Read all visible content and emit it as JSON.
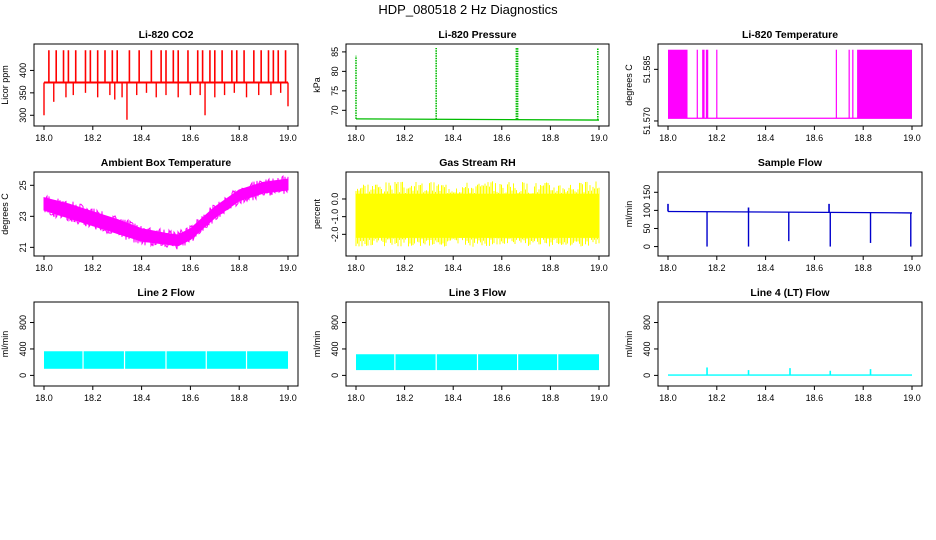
{
  "page": {
    "title": "HDP_080518  2 Hz Diagnostics"
  },
  "chart_data": [
    {
      "type": "line",
      "title": "Li-820 CO2",
      "xlabel": "",
      "ylabel": "Licor ppm",
      "xlim": [
        18.0,
        19.0
      ],
      "ylim": [
        285,
        450
      ],
      "xticks": [
        18.0,
        18.2,
        18.4,
        18.6,
        18.8,
        19.0
      ],
      "yticks": [
        300,
        350,
        400
      ],
      "color": "#ff0000",
      "baseline": 373,
      "style": "spikes",
      "spikes": {
        "up": [
          18.02,
          18.05,
          18.08,
          18.1,
          18.13,
          18.17,
          18.19,
          18.22,
          18.25,
          18.28,
          18.3,
          18.35,
          18.39,
          18.44,
          18.48,
          18.5,
          18.53,
          18.55,
          18.59,
          18.63,
          18.65,
          18.68,
          18.7,
          18.73,
          18.77,
          18.79,
          18.82,
          18.86,
          18.89,
          18.92,
          18.94,
          18.96,
          18.99
        ],
        "up_value": 445,
        "down": [
          18.0,
          18.04,
          18.09,
          18.12,
          18.17,
          18.22,
          18.27,
          18.29,
          18.32,
          18.34,
          18.38,
          18.42,
          18.46,
          18.5,
          18.55,
          18.6,
          18.64,
          18.66,
          18.7,
          18.74,
          18.78,
          18.83,
          18.88,
          18.93,
          18.97,
          19.0
        ],
        "down_values": [
          300,
          330,
          340,
          345,
          350,
          340,
          345,
          335,
          340,
          290,
          345,
          350,
          340,
          345,
          340,
          345,
          345,
          300,
          340,
          345,
          350,
          340,
          345,
          345,
          350,
          320
        ]
      }
    },
    {
      "type": "line",
      "title": "Li-820 Pressure",
      "xlabel": "",
      "ylabel": "kPa",
      "xlim": [
        18.0,
        19.0
      ],
      "ylim": [
        67,
        86
      ],
      "xticks": [
        18.0,
        18.2,
        18.4,
        18.6,
        18.8,
        19.0
      ],
      "yticks": [
        70,
        75,
        80,
        85
      ],
      "color": "#00bb00",
      "style": "spikes",
      "baseline_start": 67.8,
      "baseline_end": 67.5,
      "spikes": {
        "up": [
          18.0,
          18.33,
          18.66,
          18.665,
          18.995
        ],
        "up_values": [
          84,
          86,
          86,
          86,
          86
        ],
        "dotted": true
      }
    },
    {
      "type": "line",
      "title": "Li-820 Temperature",
      "xlabel": "",
      "ylabel": "degrees C",
      "xlim": [
        18.0,
        19.0
      ],
      "ylim": [
        51.5697,
        51.5912
      ],
      "xticks": [
        18.0,
        18.2,
        18.4,
        18.6,
        18.8,
        19.0
      ],
      "yticks": [
        51.57,
        51.585
      ],
      "color": "#ff00ff",
      "style": "binary",
      "low": 51.5708,
      "high": 51.5907,
      "bands": [
        [
          18.0,
          18.08
        ],
        [
          18.14,
          18.15
        ],
        [
          18.155,
          18.165
        ],
        [
          18.74,
          18.745
        ],
        [
          18.755,
          18.76
        ],
        [
          18.775,
          19.0
        ]
      ],
      "lines": [
        18.12,
        18.2,
        18.69
      ]
    },
    {
      "type": "line",
      "title": "Ambient Box Temperature",
      "xlabel": "",
      "ylabel": "degrees C",
      "xlim": [
        18.0,
        19.0
      ],
      "ylim": [
        20.7,
        25.6
      ],
      "xticks": [
        18.0,
        18.2,
        18.4,
        18.6,
        18.8,
        19.0
      ],
      "yticks": [
        21,
        23,
        25
      ],
      "color": "#ff00ff",
      "style": "band",
      "x": [
        18.0,
        18.1,
        18.2,
        18.3,
        18.4,
        18.5,
        18.55,
        18.6,
        18.7,
        18.8,
        18.9,
        19.0
      ],
      "upper": [
        24.2,
        23.8,
        23.3,
        22.8,
        22.2,
        21.9,
        21.8,
        22.2,
        23.6,
        24.7,
        25.2,
        25.4
      ],
      "lower": [
        23.4,
        22.9,
        22.4,
        21.9,
        21.4,
        21.2,
        21.1,
        21.5,
        22.9,
        24.0,
        24.5,
        24.7
      ]
    },
    {
      "type": "line",
      "title": "Gas Stream RH",
      "xlabel": "",
      "ylabel": "percent",
      "xlim": [
        18.0,
        19.0
      ],
      "ylim": [
        -3.0,
        1.3
      ],
      "xticks": [
        18.0,
        18.2,
        18.4,
        18.6,
        18.8,
        19.0
      ],
      "yticks": [
        -2.0,
        -1.0,
        0.0
      ],
      "color": "#ffff00",
      "style": "noise",
      "upper": 0.3,
      "lower": -2.2,
      "spike_max": 1.0,
      "spike_min": -2.7
    },
    {
      "type": "line",
      "title": "Sample Flow",
      "xlabel": "",
      "ylabel": "ml/min",
      "xlim": [
        18.0,
        19.0
      ],
      "ylim": [
        -15,
        195
      ],
      "xticks": [
        18.0,
        18.2,
        18.4,
        18.6,
        18.8,
        19.0
      ],
      "yticks": [
        0,
        50,
        100,
        150
      ],
      "color": "#0000cc",
      "style": "spikes",
      "baseline_start": 97,
      "baseline_end": 93,
      "spikes": {
        "down": [
          18.16,
          18.33,
          18.495,
          18.665,
          18.83,
          18.995
        ],
        "down_values": [
          0,
          0,
          15,
          0,
          10,
          0
        ],
        "up": [
          18.0,
          18.33,
          18.66
        ],
        "up_values": [
          118,
          108,
          118
        ]
      }
    },
    {
      "type": "line",
      "title": "Line 2 Flow",
      "xlabel": "",
      "ylabel": "ml/min",
      "xlim": [
        18.0,
        19.0
      ],
      "ylim": [
        -100,
        1050
      ],
      "xticks": [
        18.0,
        18.2,
        18.4,
        18.6,
        18.8,
        19.0
      ],
      "yticks": [
        0,
        400,
        800
      ],
      "color": "#00ffff",
      "style": "block",
      "upper": 365,
      "lower": 100,
      "gaps": [
        18.16,
        18.33,
        18.5,
        18.665,
        18.83
      ]
    },
    {
      "type": "line",
      "title": "Line 3 Flow",
      "xlabel": "",
      "ylabel": "ml/min",
      "xlim": [
        18.0,
        19.0
      ],
      "ylim": [
        -100,
        1050
      ],
      "xticks": [
        18.0,
        18.2,
        18.4,
        18.6,
        18.8,
        19.0
      ],
      "yticks": [
        0,
        400,
        800
      ],
      "color": "#00ffff",
      "style": "block",
      "upper": 320,
      "lower": 80,
      "gaps": [
        18.16,
        18.33,
        18.5,
        18.665,
        18.83
      ]
    },
    {
      "type": "line",
      "title": "Line 4 (LT) Flow",
      "xlabel": "",
      "ylabel": "ml/min",
      "xlim": [
        18.0,
        19.0
      ],
      "ylim": [
        -100,
        1050
      ],
      "xticks": [
        18.0,
        18.2,
        18.4,
        18.6,
        18.8,
        19.0
      ],
      "yticks": [
        0,
        400,
        800
      ],
      "color": "#00ffff",
      "style": "spikes",
      "baseline_start": 5,
      "baseline_end": 5,
      "spikes": {
        "up": [
          18.16,
          18.33,
          18.5,
          18.665,
          18.83
        ],
        "up_values": [
          120,
          80,
          110,
          70,
          95
        ]
      }
    }
  ]
}
